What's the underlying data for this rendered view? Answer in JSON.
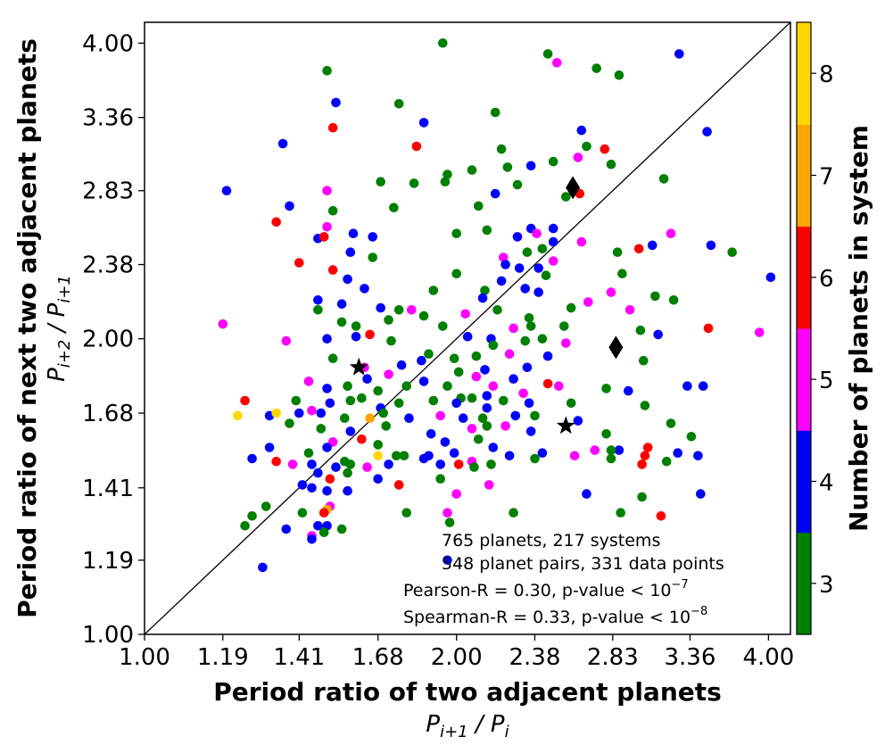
{
  "chart_data": {
    "type": "scatter",
    "xscale": "log",
    "yscale": "log",
    "xlim": [
      1.0,
      4.2
    ],
    "ylim": [
      1.0,
      4.2
    ],
    "xlabel": "Period ratio of two adjacent planets",
    "xlabel_sub": "P_{i+1} / P_i",
    "ylabel": "Period ratio of next two adjacent planets",
    "ylabel_sub": "P_{i+2} / P_{i+1}",
    "xticks": [
      1.0,
      1.19,
      1.41,
      1.68,
      2.0,
      2.38,
      2.83,
      3.36,
      4.0
    ],
    "xtick_labels": [
      "1.00",
      "1.19",
      "1.41",
      "1.68",
      "2.00",
      "2.38",
      "2.83",
      "3.36",
      "4.00"
    ],
    "yticks": [
      1.0,
      1.19,
      1.41,
      1.68,
      2.0,
      2.38,
      2.83,
      3.36,
      4.0
    ],
    "ytick_labels": [
      "1.00",
      "1.19",
      "1.41",
      "1.68",
      "2.00",
      "2.38",
      "2.83",
      "3.36",
      "4.00"
    ],
    "reference_line": "y = x",
    "colorbar": {
      "label": "Number of planets in system",
      "levels": [
        3,
        4,
        5,
        6,
        7,
        8
      ],
      "tick_labels": [
        "3",
        "4",
        "5",
        "6",
        "7",
        "8"
      ],
      "colors": {
        "3": "#008000",
        "4": "#0000ff",
        "5": "#ff00ff",
        "6": "#ff0000",
        "7": "#ffa500",
        "8": "#ffd700"
      }
    },
    "annotations": [
      "765 planets, 217 systems",
      "548 planet pairs, 331 data points",
      "Pearson-R = 0.30, p-value < 10",
      "Spearman-R = 0.33, p-value < 10"
    ],
    "annotation_exponents": [
      "−7",
      "−8"
    ],
    "special_markers": [
      {
        "shape": "star",
        "x": 1.61,
        "y": 1.87
      },
      {
        "shape": "star",
        "x": 2.55,
        "y": 1.63
      },
      {
        "shape": "diamond",
        "x": 2.59,
        "y": 2.85
      },
      {
        "shape": "diamond",
        "x": 2.85,
        "y": 1.96
      }
    ],
    "points": [
      [
        1.94,
        4.0,
        3
      ],
      [
        2.45,
        3.9,
        3
      ],
      [
        3.28,
        3.9,
        4
      ],
      [
        1.5,
        3.75,
        3
      ],
      [
        2.5,
        3.82,
        5
      ],
      [
        2.73,
        3.77,
        3
      ],
      [
        2.87,
        3.71,
        3
      ],
      [
        1.53,
        3.48,
        4
      ],
      [
        1.76,
        3.47,
        3
      ],
      [
        2.18,
        3.4,
        3
      ],
      [
        1.86,
        3.32,
        4
      ],
      [
        1.36,
        3.16,
        4
      ],
      [
        1.83,
        3.14,
        6
      ],
      [
        2.21,
        3.12,
        3
      ],
      [
        2.67,
        3.14,
        3
      ],
      [
        2.78,
        3.12,
        6
      ],
      [
        1.52,
        3.28,
        6
      ],
      [
        3.49,
        3.25,
        4
      ],
      [
        2.64,
        3.26,
        4
      ],
      [
        2.36,
        3.0,
        4
      ],
      [
        2.24,
        2.99,
        3
      ],
      [
        1.96,
        2.94,
        3
      ],
      [
        2.07,
        2.97,
        3
      ],
      [
        2.48,
        3.03,
        3
      ],
      [
        2.62,
        3.06,
        5
      ],
      [
        2.82,
        3.01,
        3
      ],
      [
        3.17,
        2.91,
        3
      ],
      [
        1.2,
        2.83,
        4
      ],
      [
        1.5,
        2.83,
        5
      ],
      [
        1.69,
        2.89,
        3
      ],
      [
        1.82,
        2.88,
        3
      ],
      [
        1.95,
        2.89,
        3
      ],
      [
        2.29,
        2.87,
        3
      ],
      [
        2.18,
        2.81,
        4
      ],
      [
        2.55,
        2.79,
        3
      ],
      [
        2.63,
        2.81,
        6
      ],
      [
        1.38,
        2.73,
        4
      ],
      [
        1.52,
        2.7,
        3
      ],
      [
        1.74,
        2.72,
        3
      ],
      [
        2.1,
        2.73,
        3
      ],
      [
        2.36,
        2.59,
        4
      ],
      [
        2.48,
        2.51,
        4
      ],
      [
        2.64,
        2.51,
        5
      ],
      [
        2.86,
        2.45,
        3
      ],
      [
        1.34,
        2.63,
        6
      ],
      [
        1.5,
        2.6,
        5
      ],
      [
        1.59,
        2.56,
        4
      ],
      [
        1.58,
        2.45,
        4
      ],
      [
        2.0,
        2.56,
        3
      ],
      [
        2.14,
        2.58,
        3
      ],
      [
        2.29,
        2.54,
        4
      ],
      [
        2.39,
        2.56,
        5
      ],
      [
        2.48,
        2.59,
        4
      ],
      [
        3.09,
        2.49,
        4
      ],
      [
        3.22,
        2.56,
        5
      ],
      [
        3.52,
        2.49,
        4
      ],
      [
        3.0,
        2.47,
        6
      ],
      [
        1.47,
        2.53,
        4
      ],
      [
        1.49,
        2.54,
        6
      ],
      [
        1.66,
        2.42,
        3
      ],
      [
        1.66,
        2.54,
        4
      ],
      [
        2.22,
        2.42,
        5
      ],
      [
        2.34,
        2.45,
        3
      ],
      [
        2.42,
        2.47,
        3
      ],
      [
        2.48,
        2.4,
        5
      ],
      [
        3.69,
        2.45,
        3
      ],
      [
        4.02,
        2.31,
        4
      ],
      [
        1.41,
        2.39,
        6
      ],
      [
        1.52,
        2.35,
        6
      ],
      [
        2.0,
        2.33,
        3
      ],
      [
        2.23,
        2.38,
        4
      ],
      [
        2.3,
        2.36,
        4
      ],
      [
        2.4,
        2.36,
        4
      ],
      [
        2.44,
        2.32,
        3
      ],
      [
        2.89,
        2.33,
        3
      ],
      [
        1.57,
        2.3,
        4
      ],
      [
        1.63,
        2.25,
        4
      ],
      [
        1.9,
        2.24,
        3
      ],
      [
        2.13,
        2.24,
        3
      ],
      [
        2.21,
        2.29,
        4
      ],
      [
        2.33,
        2.25,
        4
      ],
      [
        2.4,
        2.23,
        4
      ],
      [
        2.82,
        2.23,
        5
      ],
      [
        3.11,
        2.21,
        3
      ],
      [
        1.47,
        2.19,
        4
      ],
      [
        1.55,
        2.17,
        4
      ],
      [
        1.69,
        2.15,
        4
      ],
      [
        1.76,
        2.14,
        3
      ],
      [
        2.04,
        2.12,
        5
      ],
      [
        2.12,
        2.2,
        4
      ],
      [
        2.19,
        2.14,
        3
      ],
      [
        2.35,
        2.1,
        3
      ],
      [
        2.58,
        2.15,
        3
      ],
      [
        2.68,
        2.18,
        5
      ],
      [
        3.24,
        2.19,
        3
      ],
      [
        2.94,
        2.14,
        5
      ],
      [
        1.19,
        2.07,
        5
      ],
      [
        1.47,
        2.14,
        3
      ],
      [
        1.55,
        2.08,
        3
      ],
      [
        1.6,
        2.06,
        3
      ],
      [
        1.72,
        2.09,
        3
      ],
      [
        1.81,
        2.14,
        5
      ],
      [
        1.86,
        2.11,
        3
      ],
      [
        1.94,
        2.06,
        3
      ],
      [
        2.05,
        2.01,
        4
      ],
      [
        2.16,
        2.0,
        4
      ],
      [
        2.27,
        2.05,
        5
      ],
      [
        2.36,
        2.06,
        3
      ],
      [
        2.42,
        2.0,
        3
      ],
      [
        2.54,
        2.06,
        3
      ],
      [
        3.01,
        2.04,
        3
      ],
      [
        3.13,
        2.02,
        4
      ],
      [
        3.5,
        2.05,
        6
      ],
      [
        3.92,
        2.03,
        5
      ],
      [
        1.37,
        1.99,
        5
      ],
      [
        1.5,
        2.0,
        4
      ],
      [
        1.6,
        2.01,
        4
      ],
      [
        1.65,
        2.02,
        6
      ],
      [
        1.73,
        1.99,
        3
      ],
      [
        1.88,
        1.93,
        3
      ],
      [
        1.99,
        1.91,
        3
      ],
      [
        2.09,
        1.92,
        3
      ],
      [
        2.17,
        1.97,
        3
      ],
      [
        2.25,
        1.93,
        5
      ],
      [
        2.33,
        1.99,
        3
      ],
      [
        2.45,
        1.92,
        4
      ],
      [
        2.55,
        1.98,
        5
      ],
      [
        1.52,
        1.91,
        3
      ],
      [
        1.63,
        1.87,
        5
      ],
      [
        1.72,
        1.84,
        5
      ],
      [
        1.77,
        1.88,
        4
      ],
      [
        1.85,
        1.9,
        4
      ],
      [
        2.01,
        1.85,
        3
      ],
      [
        2.09,
        1.83,
        5
      ],
      [
        2.13,
        1.86,
        4
      ],
      [
        2.27,
        1.82,
        4
      ],
      [
        2.34,
        1.87,
        4
      ],
      [
        3.03,
        1.9,
        3
      ],
      [
        1.44,
        1.81,
        5
      ],
      [
        1.5,
        1.78,
        4
      ],
      [
        1.57,
        1.79,
        3
      ],
      [
        1.64,
        1.82,
        4
      ],
      [
        1.68,
        1.77,
        3
      ],
      [
        1.79,
        1.79,
        3
      ],
      [
        1.86,
        1.81,
        4
      ],
      [
        1.96,
        1.79,
        3
      ],
      [
        2.02,
        1.74,
        3
      ],
      [
        2.14,
        1.75,
        4
      ],
      [
        2.17,
        1.79,
        5
      ],
      [
        2.32,
        1.76,
        5
      ],
      [
        2.45,
        1.8,
        6
      ],
      [
        2.51,
        1.79,
        5
      ],
      [
        2.79,
        1.78,
        3
      ],
      [
        2.93,
        1.77,
        4
      ],
      [
        3.34,
        1.79,
        4
      ],
      [
        3.46,
        1.79,
        4
      ],
      [
        1.25,
        1.73,
        6
      ],
      [
        1.4,
        1.73,
        3
      ],
      [
        1.45,
        1.69,
        5
      ],
      [
        1.51,
        1.72,
        4
      ],
      [
        1.58,
        1.73,
        3
      ],
      [
        1.62,
        1.74,
        3
      ],
      [
        1.69,
        1.7,
        4
      ],
      [
        1.76,
        1.72,
        3
      ],
      [
        1.9,
        1.73,
        3
      ],
      [
        2.0,
        1.72,
        4
      ],
      [
        2.07,
        1.74,
        3
      ],
      [
        2.14,
        1.7,
        4
      ],
      [
        2.22,
        1.73,
        3
      ],
      [
        2.35,
        1.72,
        4
      ],
      [
        2.58,
        1.72,
        3
      ],
      [
        3.04,
        1.71,
        3
      ],
      [
        1.23,
        1.67,
        8
      ],
      [
        1.32,
        1.67,
        4
      ],
      [
        1.34,
        1.68,
        8
      ],
      [
        1.41,
        1.68,
        4
      ],
      [
        1.48,
        1.68,
        4
      ],
      [
        1.56,
        1.66,
        3
      ],
      [
        1.65,
        1.66,
        7
      ],
      [
        1.7,
        1.68,
        3
      ],
      [
        1.8,
        1.66,
        4
      ],
      [
        1.93,
        1.67,
        5
      ],
      [
        2.03,
        1.66,
        4
      ],
      [
        2.12,
        1.66,
        3
      ],
      [
        2.28,
        1.67,
        4
      ],
      [
        2.38,
        1.67,
        3
      ],
      [
        2.62,
        1.65,
        4
      ],
      [
        3.22,
        1.64,
        3
      ],
      [
        1.38,
        1.64,
        3
      ],
      [
        1.48,
        1.62,
        3
      ],
      [
        1.58,
        1.61,
        4
      ],
      [
        1.71,
        1.63,
        3
      ],
      [
        1.89,
        1.6,
        4
      ],
      [
        2.07,
        1.62,
        5
      ],
      [
        2.14,
        1.63,
        3
      ],
      [
        2.23,
        1.63,
        5
      ],
      [
        2.36,
        1.61,
        4
      ],
      [
        2.79,
        1.6,
        3
      ],
      [
        3.37,
        1.59,
        3
      ],
      [
        1.52,
        1.57,
        5
      ],
      [
        1.62,
        1.58,
        6
      ],
      [
        1.68,
        1.56,
        3
      ],
      [
        1.95,
        1.57,
        4
      ],
      [
        2.1,
        1.58,
        3
      ],
      [
        2.17,
        1.55,
        4
      ],
      [
        2.42,
        1.53,
        4
      ],
      [
        2.87,
        1.54,
        4
      ],
      [
        3.06,
        1.55,
        6
      ],
      [
        1.32,
        1.55,
        4
      ],
      [
        1.44,
        1.53,
        3
      ],
      [
        1.5,
        1.55,
        4
      ],
      [
        1.56,
        1.5,
        3
      ],
      [
        1.68,
        1.52,
        8
      ],
      [
        1.78,
        1.52,
        3
      ],
      [
        1.88,
        1.52,
        4
      ],
      [
        1.99,
        1.53,
        4
      ],
      [
        2.07,
        1.5,
        5
      ],
      [
        2.25,
        1.52,
        4
      ],
      [
        2.72,
        1.54,
        5
      ],
      [
        2.82,
        1.54,
        3
      ],
      [
        3.04,
        1.52,
        6
      ],
      [
        3.27,
        1.53,
        4
      ],
      [
        1.27,
        1.51,
        4
      ],
      [
        1.34,
        1.5,
        6
      ],
      [
        1.39,
        1.49,
        5
      ],
      [
        1.45,
        1.49,
        4
      ],
      [
        1.53,
        1.48,
        4
      ],
      [
        1.58,
        1.49,
        3
      ],
      [
        1.64,
        1.48,
        5
      ],
      [
        1.72,
        1.49,
        4
      ],
      [
        1.75,
        1.52,
        3
      ],
      [
        1.86,
        1.51,
        4
      ],
      [
        1.93,
        1.49,
        4
      ],
      [
        2.01,
        1.49,
        6
      ],
      [
        2.08,
        1.48,
        3
      ],
      [
        2.16,
        1.49,
        3
      ],
      [
        2.38,
        1.51,
        3
      ],
      [
        2.6,
        1.52,
        5
      ],
      [
        2.82,
        1.51,
        3
      ],
      [
        3.02,
        1.49,
        6
      ],
      [
        3.19,
        1.5,
        3
      ],
      [
        3.42,
        1.52,
        4
      ],
      [
        1.47,
        1.46,
        4
      ],
      [
        1.51,
        1.44,
        6
      ],
      [
        1.57,
        1.46,
        3
      ],
      [
        1.68,
        1.44,
        4
      ],
      [
        1.76,
        1.42,
        6
      ],
      [
        1.93,
        1.44,
        3
      ],
      [
        2.15,
        1.42,
        5
      ],
      [
        1.42,
        1.42,
        4
      ],
      [
        1.45,
        1.41,
        4
      ],
      [
        1.5,
        1.4,
        4
      ],
      [
        1.57,
        1.4,
        4
      ],
      [
        2.0,
        1.39,
        5
      ],
      [
        2.67,
        1.39,
        4
      ],
      [
        3.02,
        1.38,
        3
      ],
      [
        3.44,
        1.39,
        4
      ],
      [
        1.31,
        1.35,
        3
      ],
      [
        1.51,
        1.35,
        5
      ],
      [
        1.5,
        1.34,
        7
      ],
      [
        1.49,
        1.33,
        6
      ],
      [
        1.42,
        1.33,
        3
      ],
      [
        1.79,
        1.33,
        3
      ],
      [
        1.96,
        1.33,
        5
      ],
      [
        2.27,
        1.33,
        3
      ],
      [
        2.88,
        1.33,
        3
      ],
      [
        3.15,
        1.32,
        6
      ],
      [
        1.27,
        1.32,
        3
      ],
      [
        1.25,
        1.29,
        3
      ],
      [
        1.37,
        1.28,
        4
      ],
      [
        1.45,
        1.26,
        5
      ],
      [
        1.47,
        1.29,
        4
      ],
      [
        1.5,
        1.29,
        4
      ],
      [
        1.55,
        1.28,
        3
      ],
      [
        1.97,
        1.3,
        3
      ],
      [
        1.49,
        1.27,
        3
      ],
      [
        1.45,
        1.25,
        4
      ],
      [
        1.3,
        1.17,
        4
      ],
      [
        1.96,
        1.19,
        4
      ]
    ]
  }
}
